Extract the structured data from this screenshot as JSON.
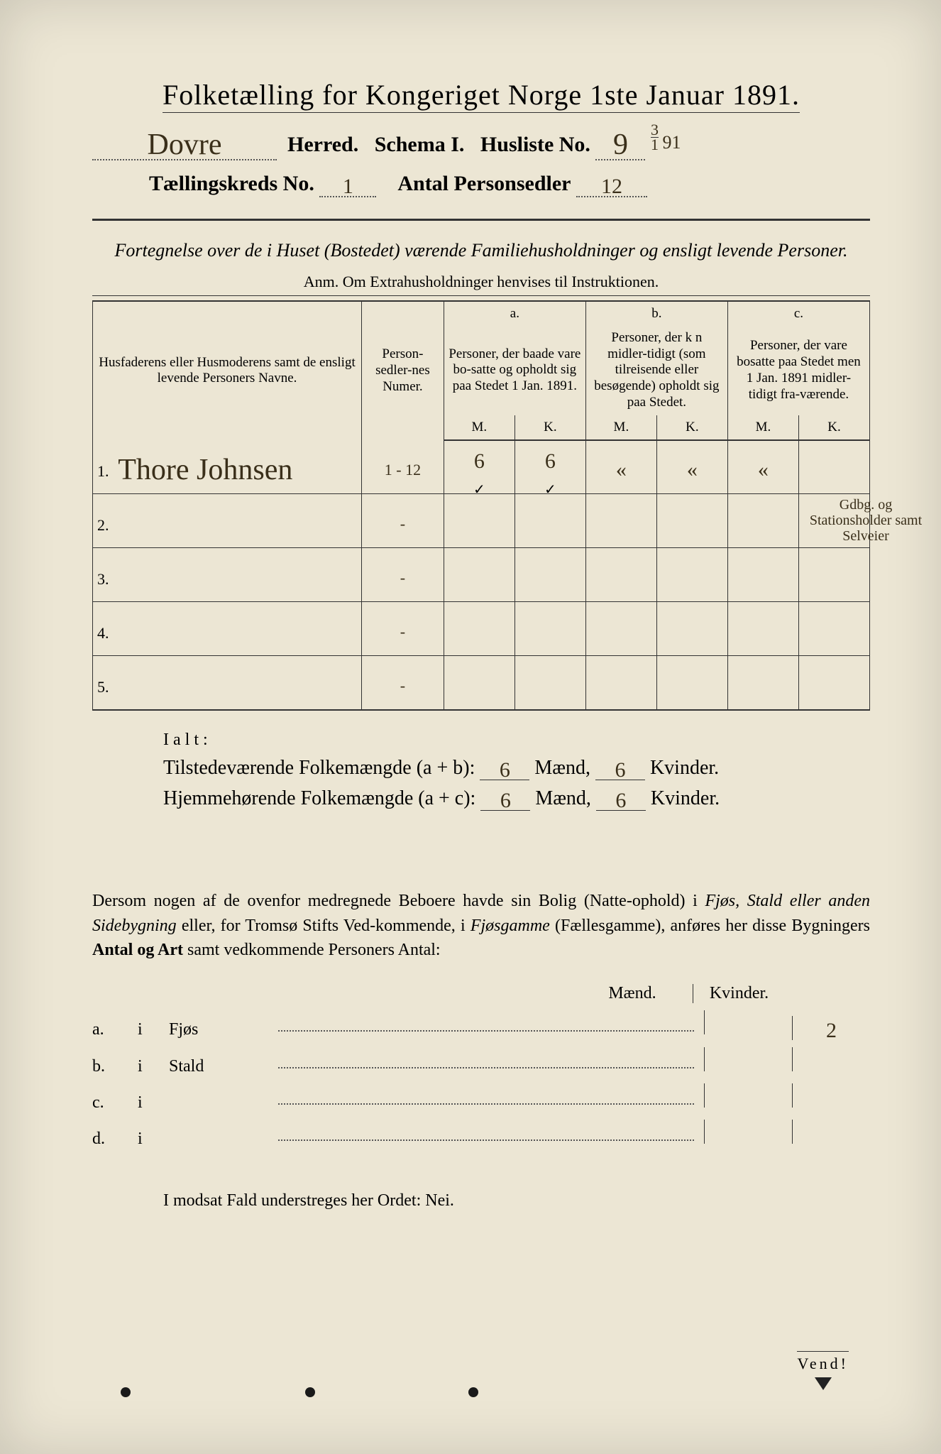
{
  "colors": {
    "paper": "#ece6d4",
    "ink": "#333333",
    "handwriting": "#3a2f1a"
  },
  "typography": {
    "print_family": "Times New Roman",
    "hand_family": "Brush Script MT",
    "title_pt": 40,
    "body_pt": 24
  },
  "title": "Folketælling for Kongeriget Norge 1ste Januar 1891.",
  "header": {
    "herred_value": "Dovre",
    "herred_label": "Herred.",
    "schema_label": "Schema I.",
    "husliste_label": "Husliste No.",
    "husliste_no": "9",
    "date_fraction": {
      "num": "3",
      "den": "1"
    },
    "year_suffix": "91",
    "kreds_label": "Tællingskreds No.",
    "kreds_no": "1",
    "antal_label": "Antal Personsedler",
    "antal_value": "12"
  },
  "subtitle": "Fortegnelse over de i Huset (Bostedet) værende Familiehusholdninger og ensligt levende Personer.",
  "anm": "Anm. Om Extrahusholdninger henvises til Instruktionen.",
  "table": {
    "col_name": "Husfaderens eller Husmoderens samt de ensligt levende Personers Navne.",
    "col_num": "Person-sedler-nes Numer.",
    "a_label": "a.",
    "a_text": "Personer, der baade vare bo-satte og opholdt sig paa Stedet 1 Jan. 1891.",
    "b_label": "b.",
    "b_text": "Personer, der k n midler-tidigt (som tilreisende eller besøgende) opholdt sig paa Stedet.",
    "c_label": "c.",
    "c_text": "Personer, der vare bosatte paa Stedet men 1 Jan. 1891 midler-tidigt fra-værende.",
    "m": "M.",
    "k": "K.",
    "rows": [
      {
        "idx": "1.",
        "name": "Thore Johnsen",
        "num": "1 - 12",
        "aM": "6",
        "aK": "6",
        "bM": "«",
        "bK": "«",
        "cM": "«",
        "cK": ""
      },
      {
        "idx": "2.",
        "name": "",
        "num": "-",
        "aM": "",
        "aK": "",
        "bM": "",
        "bK": "",
        "cM": "",
        "cK": ""
      },
      {
        "idx": "3.",
        "name": "",
        "num": "-",
        "aM": "",
        "aK": "",
        "bM": "",
        "bK": "",
        "cM": "",
        "cK": ""
      },
      {
        "idx": "4.",
        "name": "",
        "num": "-",
        "aM": "",
        "aK": "",
        "bM": "",
        "bK": "",
        "cM": "",
        "cK": ""
      },
      {
        "idx": "5.",
        "name": "",
        "num": "-",
        "aM": "",
        "aK": "",
        "bM": "",
        "bK": "",
        "cM": "",
        "cK": ""
      }
    ],
    "margin_note": "Gdbg. og Stationsholder samt Selveier"
  },
  "totals": {
    "ialt": "Ialt:",
    "line1_label": "Tilstedeværende Folkemængde (a + b):",
    "line2_label": "Hjemmehørende Folkemængde (a + c):",
    "maend": "Mænd,",
    "kvinder": "Kvinder.",
    "t_m": "6",
    "t_k": "6",
    "h_m": "6",
    "h_k": "6"
  },
  "paragraph": "Dersom nogen af de ovenfor medregnede Beboere havde sin Bolig (Natte-ophold) i Fjøs, Stald eller anden Sidebygning eller, for Tromsø Stifts Ved-kommende, i Fjøsgamme (Fællesgamme), anføres her disse Bygningers Antal og Art samt vedkommende Personers Antal:",
  "buildings": {
    "head_m": "Mænd.",
    "head_k": "Kvinder.",
    "rows": [
      {
        "lab": "a.",
        "name": "Fjøs",
        "m": "",
        "k": "2"
      },
      {
        "lab": "b.",
        "name": "Stald",
        "m": "",
        "k": ""
      },
      {
        "lab": "c.",
        "name": "",
        "m": "",
        "k": ""
      },
      {
        "lab": "d.",
        "name": "",
        "m": "",
        "k": ""
      }
    ],
    "i": "i"
  },
  "modsat": "I modsat Fald understreges her Ordet: Nei.",
  "vend": "Vend!"
}
